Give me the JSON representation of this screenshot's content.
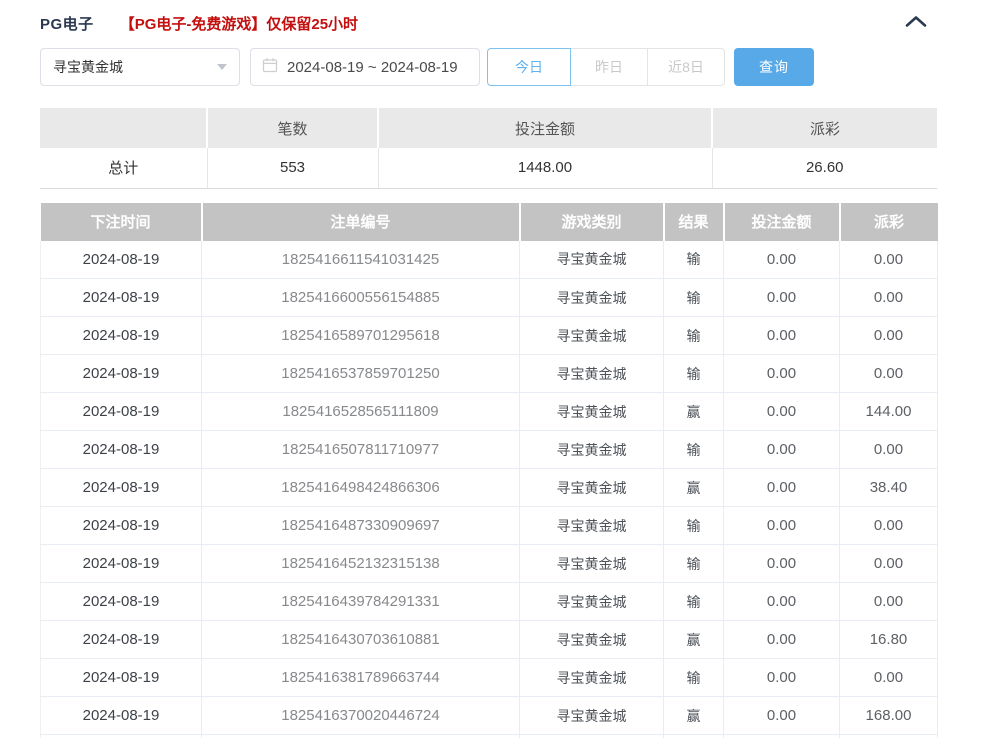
{
  "header": {
    "title": "PG电子",
    "notice": "【PG电子-免费游戏】仅保留25小时"
  },
  "icons": {
    "collapse": "chevron-up",
    "select_caret": "chevron-down",
    "date": "calendar"
  },
  "filters": {
    "game_select": {
      "value": "寻宝黄金城"
    },
    "date_range": {
      "value": "2024-08-19 ~ 2024-08-19"
    },
    "quick_ranges": [
      {
        "label": "今日",
        "active": true
      },
      {
        "label": "昨日",
        "active": false
      },
      {
        "label": "近8日",
        "active": false
      }
    ],
    "query_button": "查询"
  },
  "summary": {
    "headers": [
      "",
      "笔数",
      "投注金额",
      "派彩"
    ],
    "total_label": "总计",
    "count": "553",
    "bet_amount": "1448.00",
    "payout": "26.60"
  },
  "records": {
    "headers": [
      "下注时间",
      "注单编号",
      "游戏类别",
      "结果",
      "投注金额",
      "派彩"
    ],
    "rows": [
      [
        "2024-08-19",
        "1825416611541031425",
        "寻宝黄金城",
        "输",
        "0.00",
        "0.00"
      ],
      [
        "2024-08-19",
        "1825416600556154885",
        "寻宝黄金城",
        "输",
        "0.00",
        "0.00"
      ],
      [
        "2024-08-19",
        "1825416589701295618",
        "寻宝黄金城",
        "输",
        "0.00",
        "0.00"
      ],
      [
        "2024-08-19",
        "1825416537859701250",
        "寻宝黄金城",
        "输",
        "0.00",
        "0.00"
      ],
      [
        "2024-08-19",
        "1825416528565111809",
        "寻宝黄金城",
        "赢",
        "0.00",
        "144.00"
      ],
      [
        "2024-08-19",
        "1825416507811710977",
        "寻宝黄金城",
        "输",
        "0.00",
        "0.00"
      ],
      [
        "2024-08-19",
        "1825416498424866306",
        "寻宝黄金城",
        "赢",
        "0.00",
        "38.40"
      ],
      [
        "2024-08-19",
        "1825416487330909697",
        "寻宝黄金城",
        "输",
        "0.00",
        "0.00"
      ],
      [
        "2024-08-19",
        "1825416452132315138",
        "寻宝黄金城",
        "输",
        "0.00",
        "0.00"
      ],
      [
        "2024-08-19",
        "1825416439784291331",
        "寻宝黄金城",
        "输",
        "0.00",
        "0.00"
      ],
      [
        "2024-08-19",
        "1825416430703610881",
        "寻宝黄金城",
        "赢",
        "0.00",
        "16.80"
      ],
      [
        "2024-08-19",
        "1825416381789663744",
        "寻宝黄金城",
        "输",
        "0.00",
        "0.00"
      ],
      [
        "2024-08-19",
        "1825416370020446724",
        "寻宝黄金城",
        "赢",
        "0.00",
        "168.00"
      ]
    ]
  },
  "colors": {
    "accent_blue": "#58a9e8",
    "notice_red": "#c40f0f",
    "table_header_gray": "#c3c3c3",
    "summary_header_gray": "#e9e9e9",
    "title_navy": "#2b3950"
  }
}
